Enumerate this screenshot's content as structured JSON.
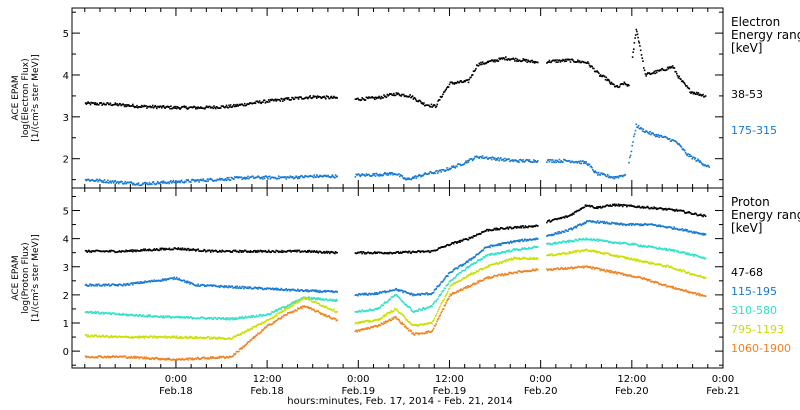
{
  "chart_data": [
    {
      "type": "scatter",
      "panel": "electron",
      "ylabel_lines": [
        "ACE EPAM",
        "log(Electron Flux)",
        "[1/(cm²s ster MeV)]"
      ],
      "legend_title_lines": [
        "Electron",
        "Energy range",
        "[keV]"
      ],
      "ylim": [
        1.3,
        5.6
      ],
      "yticks": [
        2,
        3,
        4,
        5
      ],
      "grid": false,
      "legend_position": "right",
      "series": [
        {
          "name": "38-53",
          "color": "#000000",
          "segments": [
            [
              [
                -0.5,
                3.32
              ],
              [
                -0.35,
                3.3
              ],
              [
                -0.2,
                3.25
              ],
              [
                0.0,
                3.22
              ],
              [
                0.15,
                3.22
              ],
              [
                0.3,
                3.25
              ],
              [
                0.45,
                3.35
              ],
              [
                0.6,
                3.42
              ],
              [
                0.75,
                3.48
              ],
              [
                0.88,
                3.45
              ]
            ],
            [
              [
                0.98,
                3.42
              ],
              [
                1.1,
                3.45
              ],
              [
                1.2,
                3.55
              ],
              [
                1.28,
                3.5
              ],
              [
                1.36,
                3.3
              ],
              [
                1.42,
                3.25
              ],
              [
                1.46,
                3.55
              ],
              [
                1.5,
                3.8
              ],
              [
                1.6,
                3.85
              ],
              [
                1.65,
                4.25
              ],
              [
                1.8,
                4.4
              ],
              [
                1.9,
                4.35
              ],
              [
                1.98,
                4.3
              ]
            ],
            [
              [
                2.03,
                4.32
              ],
              [
                2.15,
                4.35
              ],
              [
                2.25,
                4.3
              ],
              [
                2.32,
                4.0
              ],
              [
                2.36,
                3.9
              ],
              [
                2.38,
                3.8
              ],
              [
                2.42,
                3.7
              ],
              [
                2.45,
                3.8
              ],
              [
                2.48,
                3.75
              ]
            ],
            [
              [
                2.5,
                4.4
              ],
              [
                2.52,
                5.1
              ],
              [
                2.54,
                4.7
              ],
              [
                2.57,
                4.0
              ],
              [
                2.65,
                4.1
              ],
              [
                2.72,
                4.2
              ],
              [
                2.76,
                3.9
              ],
              [
                2.82,
                3.6
              ],
              [
                2.9,
                3.5
              ]
            ]
          ]
        },
        {
          "name": "175-315",
          "color": "#1478d0",
          "segments": [
            [
              [
                -0.5,
                1.5
              ],
              [
                -0.35,
                1.45
              ],
              [
                -0.2,
                1.4
              ],
              [
                0.0,
                1.45
              ],
              [
                0.2,
                1.5
              ],
              [
                0.4,
                1.55
              ],
              [
                0.6,
                1.55
              ],
              [
                0.75,
                1.58
              ],
              [
                0.88,
                1.58
              ]
            ],
            [
              [
                0.98,
                1.6
              ],
              [
                1.1,
                1.62
              ],
              [
                1.2,
                1.65
              ],
              [
                1.26,
                1.5
              ],
              [
                1.3,
                1.55
              ],
              [
                1.38,
                1.65
              ],
              [
                1.45,
                1.7
              ],
              [
                1.55,
                1.85
              ],
              [
                1.65,
                2.05
              ],
              [
                1.75,
                2.0
              ],
              [
                1.85,
                1.95
              ],
              [
                1.98,
                1.95
              ]
            ],
            [
              [
                2.03,
                1.95
              ],
              [
                2.15,
                1.95
              ],
              [
                2.25,
                1.9
              ],
              [
                2.3,
                1.65
              ],
              [
                2.35,
                1.6
              ],
              [
                2.4,
                1.55
              ],
              [
                2.46,
                1.62
              ]
            ],
            [
              [
                2.48,
                1.9
              ],
              [
                2.52,
                2.8
              ],
              [
                2.55,
                2.7
              ],
              [
                2.6,
                2.6
              ],
              [
                2.68,
                2.5
              ],
              [
                2.74,
                2.4
              ],
              [
                2.8,
                2.1
              ],
              [
                2.88,
                1.9
              ],
              [
                2.92,
                1.8
              ]
            ]
          ]
        }
      ]
    },
    {
      "type": "scatter",
      "panel": "proton",
      "ylabel_lines": [
        "ACE EPAM",
        "log(Proton Flux)",
        "[1/(cm²s ster MeV)]"
      ],
      "legend_title_lines": [
        "Proton",
        "Energy range",
        "[keV]"
      ],
      "ylim": [
        -0.6,
        5.8
      ],
      "yticks": [
        0,
        1,
        2,
        3,
        4,
        5
      ],
      "xticks": [
        0,
        0.5,
        1,
        1.5,
        2,
        2.5,
        3
      ],
      "xticklabels": [
        [
          "0:00",
          "Feb.18"
        ],
        [
          "12:00",
          "Feb.18"
        ],
        [
          "0:00",
          "Feb.19"
        ],
        [
          "12:00",
          "Feb.19"
        ],
        [
          "0:00",
          "Feb.20"
        ],
        [
          "12:00",
          "Feb.20"
        ],
        [
          "0:00",
          "Feb.21"
        ]
      ],
      "xlim": [
        -0.57,
        3.0
      ],
      "xlabel": "hours:minutes, Feb. 17, 2014 - Feb. 21, 2014",
      "grid": false,
      "legend_position": "right",
      "series": [
        {
          "name": "47-68",
          "color": "#000000",
          "segments": [
            [
              [
                -0.5,
                3.55
              ],
              [
                -0.3,
                3.55
              ],
              [
                0.0,
                3.65
              ],
              [
                0.2,
                3.55
              ],
              [
                0.5,
                3.55
              ],
              [
                0.7,
                3.55
              ],
              [
                0.88,
                3.5
              ]
            ],
            [
              [
                0.98,
                3.5
              ],
              [
                1.2,
                3.5
              ],
              [
                1.4,
                3.55
              ],
              [
                1.5,
                3.8
              ],
              [
                1.6,
                4.0
              ],
              [
                1.7,
                4.3
              ],
              [
                1.85,
                4.4
              ],
              [
                1.98,
                4.45
              ]
            ],
            [
              [
                2.03,
                4.6
              ],
              [
                2.15,
                4.8
              ],
              [
                2.25,
                5.2
              ],
              [
                2.3,
                5.1
              ],
              [
                2.4,
                5.2
              ],
              [
                2.6,
                5.1
              ],
              [
                2.75,
                5.0
              ],
              [
                2.9,
                4.8
              ]
            ]
          ]
        },
        {
          "name": "115-195",
          "color": "#1478d0",
          "segments": [
            [
              [
                -0.5,
                2.35
              ],
              [
                -0.3,
                2.35
              ],
              [
                0.0,
                2.6
              ],
              [
                0.1,
                2.35
              ],
              [
                0.4,
                2.25
              ],
              [
                0.7,
                2.15
              ],
              [
                0.88,
                2.1
              ]
            ],
            [
              [
                0.98,
                2.0
              ],
              [
                1.1,
                2.05
              ],
              [
                1.2,
                2.2
              ],
              [
                1.3,
                2.0
              ],
              [
                1.4,
                2.05
              ],
              [
                1.5,
                2.8
              ],
              [
                1.6,
                3.2
              ],
              [
                1.7,
                3.7
              ],
              [
                1.85,
                3.9
              ],
              [
                1.98,
                4.0
              ]
            ],
            [
              [
                2.03,
                4.1
              ],
              [
                2.15,
                4.3
              ],
              [
                2.25,
                4.6
              ],
              [
                2.3,
                4.6
              ],
              [
                2.45,
                4.5
              ],
              [
                2.6,
                4.5
              ],
              [
                2.75,
                4.35
              ],
              [
                2.9,
                4.15
              ]
            ]
          ]
        },
        {
          "name": "310-580",
          "color": "#30e0c8",
          "segments": [
            [
              [
                -0.5,
                1.4
              ],
              [
                -0.3,
                1.3
              ],
              [
                0.0,
                1.2
              ],
              [
                0.3,
                1.15
              ],
              [
                0.5,
                1.3
              ],
              [
                0.6,
                1.6
              ],
              [
                0.7,
                1.9
              ],
              [
                0.88,
                1.8
              ]
            ],
            [
              [
                0.98,
                1.4
              ],
              [
                1.1,
                1.5
              ],
              [
                1.2,
                2.0
              ],
              [
                1.3,
                1.4
              ],
              [
                1.4,
                1.6
              ],
              [
                1.5,
                2.5
              ],
              [
                1.6,
                3.0
              ],
              [
                1.7,
                3.4
              ],
              [
                1.85,
                3.6
              ],
              [
                1.98,
                3.7
              ]
            ],
            [
              [
                2.03,
                3.8
              ],
              [
                2.15,
                3.9
              ],
              [
                2.25,
                4.0
              ],
              [
                2.35,
                3.9
              ],
              [
                2.5,
                3.8
              ],
              [
                2.6,
                3.7
              ],
              [
                2.75,
                3.55
              ],
              [
                2.9,
                3.3
              ]
            ]
          ]
        },
        {
          "name": "795-1193",
          "color": "#c8e000",
          "segments": [
            [
              [
                -0.5,
                0.55
              ],
              [
                -0.3,
                0.5
              ],
              [
                0.0,
                0.5
              ],
              [
                0.3,
                0.45
              ],
              [
                0.5,
                1.1
              ],
              [
                0.6,
                1.5
              ],
              [
                0.7,
                1.9
              ],
              [
                0.88,
                1.4
              ]
            ],
            [
              [
                0.98,
                1.0
              ],
              [
                1.1,
                1.1
              ],
              [
                1.2,
                1.5
              ],
              [
                1.3,
                0.9
              ],
              [
                1.4,
                1.0
              ],
              [
                1.5,
                2.3
              ],
              [
                1.6,
                2.7
              ],
              [
                1.7,
                3.0
              ],
              [
                1.85,
                3.3
              ],
              [
                1.98,
                3.3
              ]
            ],
            [
              [
                2.03,
                3.4
              ],
              [
                2.15,
                3.5
              ],
              [
                2.25,
                3.6
              ],
              [
                2.4,
                3.4
              ],
              [
                2.55,
                3.2
              ],
              [
                2.7,
                3.0
              ],
              [
                2.9,
                2.6
              ]
            ]
          ]
        },
        {
          "name": "1060-1900",
          "color": "#f08020",
          "segments": [
            [
              [
                -0.5,
                -0.2
              ],
              [
                -0.3,
                -0.2
              ],
              [
                0.0,
                -0.3
              ],
              [
                0.3,
                -0.2
              ],
              [
                0.5,
                0.9
              ],
              [
                0.6,
                1.3
              ],
              [
                0.7,
                1.6
              ],
              [
                0.88,
                1.1
              ]
            ],
            [
              [
                0.98,
                0.7
              ],
              [
                1.1,
                0.9
              ],
              [
                1.2,
                1.2
              ],
              [
                1.3,
                0.6
              ],
              [
                1.4,
                0.7
              ],
              [
                1.5,
                2.0
              ],
              [
                1.6,
                2.3
              ],
              [
                1.7,
                2.6
              ],
              [
                1.85,
                2.8
              ],
              [
                1.98,
                2.9
              ]
            ],
            [
              [
                2.03,
                2.9
              ],
              [
                2.15,
                2.95
              ],
              [
                2.25,
                3.0
              ],
              [
                2.4,
                2.8
              ],
              [
                2.55,
                2.6
              ],
              [
                2.7,
                2.3
              ],
              [
                2.9,
                1.95
              ]
            ]
          ]
        }
      ]
    }
  ]
}
